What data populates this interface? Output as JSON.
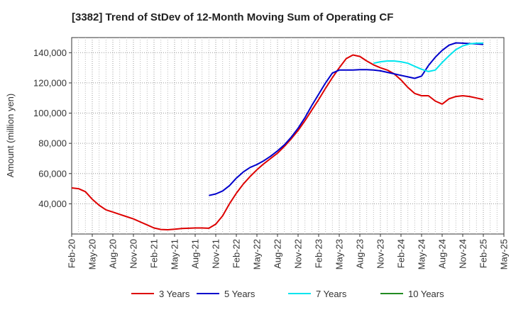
{
  "chart_data": {
    "type": "line",
    "title": "[3382]  Trend of StDev of 12-Month Moving Sum of Operating CF",
    "xlabel": "",
    "ylabel": "Amount (million yen)",
    "ylim": [
      20000,
      150000
    ],
    "yticks": [
      40000,
      60000,
      80000,
      100000,
      120000,
      140000
    ],
    "ytick_labels": [
      "40,000",
      "60,000",
      "80,000",
      "100,000",
      "120,000",
      "140,000"
    ],
    "xlim": [
      0,
      63
    ],
    "xticks": [
      0,
      3,
      6,
      9,
      12,
      15,
      18,
      21,
      24,
      27,
      30,
      33,
      36,
      39,
      42,
      45,
      48,
      51,
      54,
      57,
      60,
      63
    ],
    "xtick_labels": [
      "Feb-20",
      "May-20",
      "Aug-20",
      "Nov-20",
      "Feb-21",
      "May-21",
      "Aug-21",
      "Nov-21",
      "Feb-22",
      "May-22",
      "Aug-22",
      "Nov-22",
      "Feb-23",
      "May-23",
      "Aug-23",
      "Nov-23",
      "Feb-24",
      "May-24",
      "Aug-24",
      "Nov-24",
      "Feb-25",
      "May-25"
    ],
    "grid": true,
    "legend_position": "bottom",
    "series": [
      {
        "name": "3 Years",
        "color": "#dd0000",
        "x": [
          0,
          1,
          2,
          3,
          4,
          5,
          6,
          7,
          8,
          9,
          10,
          11,
          12,
          13,
          14,
          15,
          16,
          17,
          18,
          19,
          20,
          21,
          22,
          23,
          24,
          25,
          26,
          27,
          28,
          29,
          30,
          31,
          32,
          33,
          34,
          35,
          36,
          37,
          38,
          39,
          40,
          41,
          42,
          43,
          44,
          45,
          46,
          47,
          48,
          49,
          50,
          51,
          52,
          53,
          54,
          55,
          56,
          57,
          58,
          59,
          60
        ],
        "values": [
          50500,
          50000,
          48000,
          43000,
          39000,
          36000,
          34500,
          33000,
          31500,
          30000,
          28000,
          26000,
          24000,
          23000,
          22800,
          23200,
          23600,
          23800,
          24000,
          24000,
          23800,
          26500,
          32000,
          40000,
          47000,
          53000,
          58000,
          62500,
          66500,
          70000,
          73500,
          78000,
          83000,
          88500,
          95000,
          102000,
          109000,
          116500,
          123500,
          130000,
          136000,
          138500,
          137500,
          134500,
          132000,
          130000,
          128500,
          126000,
          122000,
          117000,
          113000,
          111500,
          111500,
          108000,
          106000,
          109500,
          111000,
          111500,
          111000,
          110000,
          109000
        ]
      },
      {
        "name": "5 Years",
        "color": "#0000cc",
        "x": [
          20,
          21,
          22,
          23,
          24,
          25,
          26,
          27,
          28,
          29,
          30,
          31,
          32,
          33,
          34,
          35,
          36,
          37,
          38,
          39,
          40,
          41,
          42,
          43,
          44,
          45,
          46,
          47,
          48,
          49,
          50,
          51,
          52,
          53,
          54,
          55,
          56,
          57,
          58,
          59,
          60
        ],
        "values": [
          45500,
          46500,
          48500,
          52000,
          57000,
          61000,
          64000,
          66000,
          68500,
          71500,
          75000,
          79000,
          84000,
          90000,
          97000,
          105000,
          112500,
          120000,
          126500,
          128500,
          128500,
          128500,
          128800,
          128800,
          128500,
          128000,
          127000,
          126000,
          125000,
          124000,
          123000,
          124500,
          131500,
          137000,
          141500,
          145000,
          146500,
          146300,
          146000,
          145800,
          145500
        ]
      },
      {
        "name": "7 Years",
        "color": "#00e5ee",
        "x": [
          44,
          45,
          46,
          47,
          48,
          49,
          50,
          51,
          52,
          53,
          54,
          55,
          56,
          57,
          58,
          59,
          60
        ],
        "values": [
          133000,
          134000,
          134500,
          134500,
          134000,
          133000,
          131000,
          129000,
          127500,
          128500,
          133500,
          138000,
          142000,
          144500,
          145800,
          146300,
          146300
        ]
      },
      {
        "name": "10 Years",
        "color": "#228b22",
        "x": [],
        "values": []
      }
    ]
  }
}
